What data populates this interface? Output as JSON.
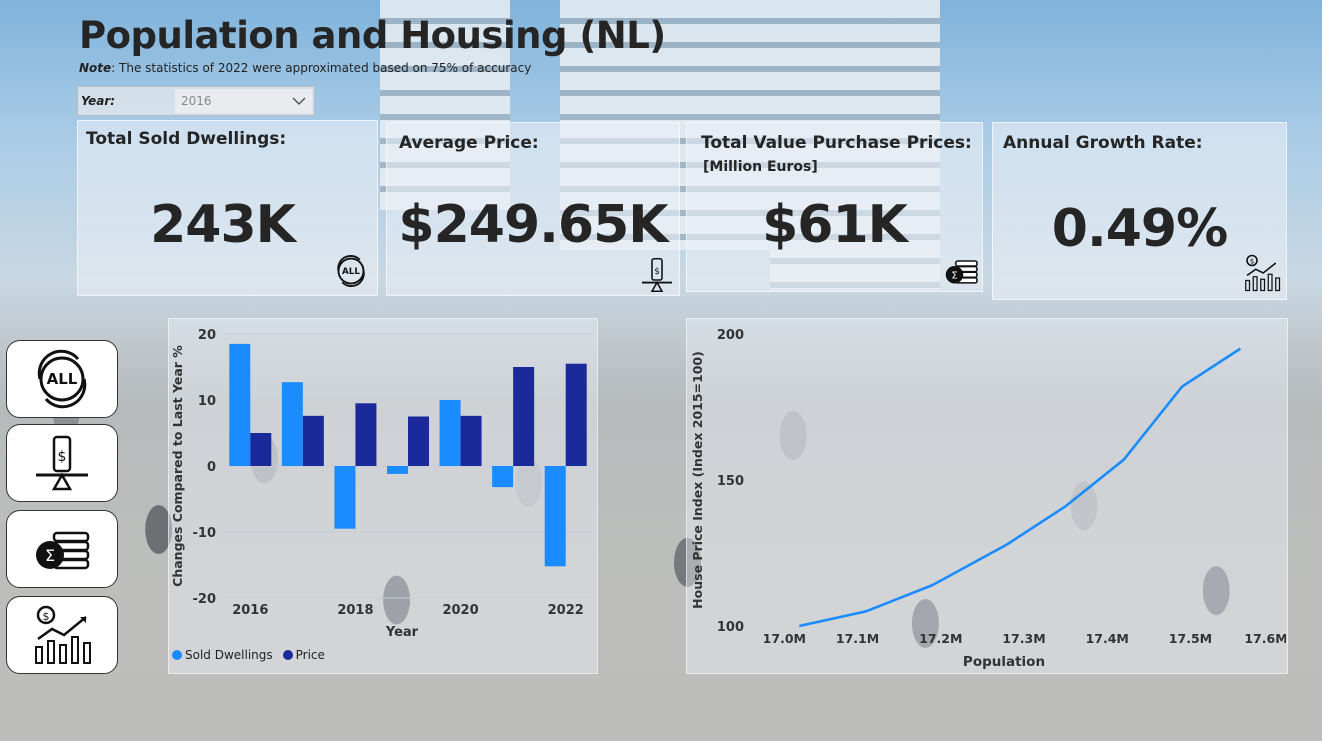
{
  "header": {
    "title": "Population and Housing (NL)",
    "note_label": "Note",
    "note_text": ": The statistics of 2022 were approximated based on 75% of accuracy"
  },
  "slicer": {
    "label": "Year:",
    "value": "2016"
  },
  "cards": [
    {
      "label": "Total Sold Dwellings:",
      "sub": "",
      "value": "243K",
      "icon": "all-icon"
    },
    {
      "label": "Average Price:",
      "sub": "",
      "value": "$249.65K",
      "icon": "price-scale-icon"
    },
    {
      "label": "Total Value Purchase Prices:",
      "sub": "[Million Euros]",
      "value": "$61K",
      "icon": "sum-coins-icon"
    },
    {
      "label": "Annual Growth Rate:",
      "sub": "",
      "value": "0.49%",
      "icon": "growth-chart-icon"
    }
  ],
  "nav": [
    {
      "icon": "all-icon"
    },
    {
      "icon": "price-scale-icon"
    },
    {
      "icon": "sum-coins-icon"
    },
    {
      "icon": "growth-chart-icon"
    }
  ],
  "colors": {
    "sold": "#1a8cff",
    "price": "#1a2a9a",
    "line": "#1a8cff"
  },
  "chart_data": [
    {
      "type": "bar",
      "xlabel": "Year",
      "ylabel": "Changes Compared to Last Year %",
      "categories": [
        "2016",
        "2017",
        "2018",
        "2019",
        "2020",
        "2021",
        "2022"
      ],
      "x_tick_labels": [
        "2016",
        "2018",
        "2020",
        "2022"
      ],
      "ylim": [
        -20,
        20
      ],
      "y_ticks": [
        "20",
        "10",
        "0",
        "-10",
        "-20"
      ],
      "series": [
        {
          "name": "Sold Dwellings",
          "values": [
            18.5,
            12.7,
            -9.5,
            -1.2,
            10.0,
            -3.2,
            -15.2
          ]
        },
        {
          "name": "Price",
          "values": [
            5.0,
            7.6,
            9.5,
            7.5,
            7.6,
            15.0,
            15.5
          ]
        }
      ],
      "legend": "bottom-left"
    },
    {
      "type": "line",
      "xlabel": "Population",
      "ylabel": "House Price Index (Index 2015=100)",
      "xlim": [
        16.99,
        17.61
      ],
      "ylim": [
        100,
        200
      ],
      "x_ticks": [
        "17.0M",
        "17.1M",
        "17.2M",
        "17.3M",
        "17.4M",
        "17.5M",
        "17.6M"
      ],
      "y_ticks": [
        "200",
        "150",
        "100"
      ],
      "x": [
        17.03,
        17.11,
        17.19,
        17.28,
        17.35,
        17.42,
        17.49,
        17.56
      ],
      "y": [
        100,
        105,
        114,
        128,
        141,
        157,
        182,
        195
      ]
    }
  ]
}
